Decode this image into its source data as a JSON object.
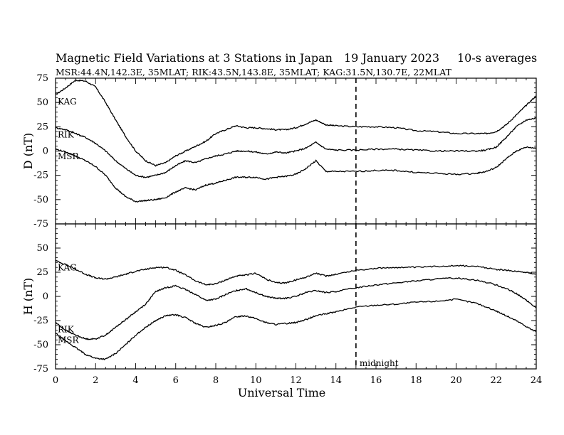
{
  "header": {
    "title": "Magnetic Field Variations at 3 Stations in Japan",
    "date": "19 January 2023",
    "averaging": "10-s averages",
    "stations": "MSR:44.4N,142.3E, 35MLAT;  RIK:43.5N,143.8E, 35MLAT;  KAG:31.5N,130.7E, 22MLAT"
  },
  "chart_data": [
    {
      "type": "line",
      "panel": "top",
      "ylabel": "D (nT)",
      "ylim": [
        -75,
        75
      ],
      "yticks": [
        75,
        50,
        25,
        0,
        -25,
        -50,
        -75
      ],
      "xlim": [
        0,
        24
      ],
      "marker_line": {
        "x": 15,
        "style": "dashed"
      },
      "series": [
        {
          "name": "KAG",
          "x": [
            0,
            0.5,
            1,
            1.5,
            2,
            2.5,
            3,
            3.5,
            4,
            4.5,
            5,
            5.5,
            6,
            6.5,
            7,
            7.5,
            8,
            8.5,
            9,
            9.5,
            10,
            10.5,
            11,
            11.5,
            12,
            12.5,
            13,
            13.5,
            14,
            15,
            16,
            17,
            18,
            19,
            20,
            21,
            21.5,
            22,
            22.5,
            23,
            23.5,
            24
          ],
          "values": [
            58,
            65,
            73,
            72,
            66,
            50,
            32,
            15,
            0,
            -10,
            -15,
            -12,
            -5,
            0,
            5,
            10,
            18,
            22,
            26,
            24,
            24,
            23,
            22,
            22,
            24,
            28,
            32,
            27,
            26,
            25,
            25,
            24,
            21,
            20,
            18,
            18,
            18,
            20,
            27,
            37,
            47,
            57
          ]
        },
        {
          "name": "RIK",
          "x": [
            0,
            0.5,
            1,
            1.5,
            2,
            2.5,
            3,
            3.5,
            4,
            4.5,
            5,
            5.5,
            6,
            6.5,
            7,
            7.5,
            8,
            8.5,
            9,
            9.5,
            10,
            10.5,
            11,
            11.5,
            12,
            12.5,
            13,
            13.5,
            14,
            15,
            16,
            17,
            18,
            19,
            20,
            21,
            21.5,
            22,
            22.5,
            23,
            23.5,
            24
          ],
          "values": [
            24,
            22,
            18,
            14,
            8,
            0,
            -10,
            -18,
            -25,
            -27,
            -25,
            -22,
            -15,
            -10,
            -12,
            -8,
            -5,
            -3,
            0,
            0,
            -1,
            -3,
            -1,
            -2,
            0,
            3,
            9,
            2,
            1,
            1,
            2,
            2,
            1,
            0,
            0,
            0,
            1,
            4,
            14,
            25,
            32,
            34
          ]
        },
        {
          "name": "MSR",
          "x": [
            0,
            0.5,
            1,
            1.5,
            2,
            2.5,
            3,
            3.5,
            4,
            4.5,
            5,
            5.5,
            6,
            6.5,
            7,
            7.5,
            8,
            8.5,
            9,
            9.5,
            10,
            10.5,
            11,
            11.5,
            12,
            12.5,
            13,
            13.5,
            14,
            15,
            16,
            17,
            18,
            19,
            20,
            21,
            21.5,
            22,
            22.5,
            23,
            23.5,
            24
          ],
          "values": [
            2,
            -1,
            -5,
            -10,
            -16,
            -25,
            -38,
            -47,
            -52,
            -51,
            -50,
            -48,
            -42,
            -38,
            -40,
            -35,
            -33,
            -30,
            -27,
            -27,
            -27,
            -29,
            -27,
            -26,
            -24,
            -18,
            -10,
            -21,
            -21,
            -21,
            -20,
            -20,
            -22,
            -23,
            -24,
            -23,
            -21,
            -17,
            -8,
            0,
            4,
            3
          ]
        }
      ]
    },
    {
      "type": "line",
      "panel": "bottom",
      "ylabel": "H (nT)",
      "xlabel": "Universal Time",
      "ylim": [
        -75,
        75
      ],
      "yticks": [
        50,
        25,
        0,
        -25,
        -50,
        -75
      ],
      "xlim": [
        0,
        24
      ],
      "xticks": [
        0,
        2,
        4,
        6,
        8,
        10,
        12,
        14,
        16,
        18,
        20,
        22,
        24
      ],
      "marker_line": {
        "x": 15,
        "style": "dashed",
        "label": "midnight"
      },
      "series": [
        {
          "name": "KAG",
          "x": [
            0,
            0.5,
            1,
            1.5,
            2,
            2.5,
            3,
            3.5,
            4,
            4.5,
            5,
            5.5,
            6,
            6.5,
            7,
            7.5,
            8,
            8.5,
            9,
            9.5,
            10,
            10.5,
            11,
            11.5,
            12,
            12.5,
            13,
            13.5,
            14,
            15,
            16,
            17,
            18,
            19,
            20,
            21,
            22,
            22.5,
            23,
            23.5,
            24
          ],
          "values": [
            37,
            33,
            28,
            23,
            19,
            18,
            20,
            23,
            26,
            28,
            30,
            30,
            27,
            22,
            16,
            12,
            13,
            17,
            21,
            22,
            24,
            18,
            14,
            14,
            17,
            20,
            24,
            21,
            23,
            27,
            29,
            30,
            30,
            31,
            32,
            31,
            28,
            27,
            26,
            25,
            23
          ]
        },
        {
          "name": "RIK",
          "x": [
            0,
            0.5,
            1,
            1.5,
            2,
            2.5,
            3,
            3.5,
            4,
            4.5,
            5,
            5.5,
            6,
            6.5,
            7,
            7.5,
            8,
            8.5,
            9,
            9.5,
            10,
            10.5,
            11,
            11.5,
            12,
            12.5,
            13,
            13.5,
            14,
            15,
            16,
            17,
            18,
            19,
            20,
            21,
            22,
            22.5,
            23,
            23.5,
            24
          ],
          "values": [
            -27,
            -35,
            -40,
            -44,
            -44,
            -40,
            -32,
            -24,
            -16,
            -8,
            5,
            9,
            11,
            7,
            2,
            -4,
            -3,
            2,
            6,
            8,
            4,
            0,
            -2,
            -2,
            0,
            4,
            6,
            4,
            5,
            9,
            12,
            14,
            16,
            18,
            19,
            17,
            12,
            8,
            3,
            -4,
            -12
          ]
        },
        {
          "name": "MSR",
          "x": [
            0,
            0.5,
            1,
            1.5,
            2,
            2.5,
            3,
            3.5,
            4,
            4.5,
            5,
            5.5,
            6,
            6.5,
            7,
            7.5,
            8,
            8.5,
            9,
            9.5,
            10,
            10.5,
            11,
            11.5,
            12,
            12.5,
            13,
            13.5,
            14,
            15,
            16,
            17,
            18,
            19,
            20,
            21,
            22,
            22.5,
            23,
            23.5,
            24
          ],
          "values": [
            -38,
            -46,
            -53,
            -60,
            -64,
            -65,
            -59,
            -50,
            -40,
            -32,
            -25,
            -20,
            -19,
            -22,
            -28,
            -32,
            -30,
            -27,
            -21,
            -20,
            -23,
            -27,
            -29,
            -28,
            -27,
            -24,
            -20,
            -18,
            -16,
            -11,
            -9,
            -8,
            -6,
            -5,
            -3,
            -7,
            -15,
            -20,
            -25,
            -31,
            -37
          ]
        }
      ]
    }
  ]
}
